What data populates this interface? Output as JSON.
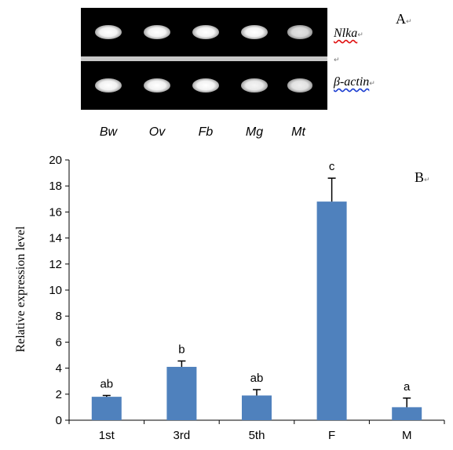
{
  "panel_a": {
    "label": "A",
    "lanes": [
      "Bw",
      "Ov",
      "Fb",
      "Mg",
      "Mt"
    ],
    "genes": [
      {
        "name": "Nlka",
        "relative_band_intensity": [
          1.0,
          1.0,
          1.0,
          1.0,
          0.75
        ]
      },
      {
        "name": "β-actin",
        "relative_band_intensity": [
          1.0,
          1.0,
          1.0,
          0.9,
          0.85
        ]
      }
    ]
  },
  "panel_b": {
    "label": "B"
  },
  "colors": {
    "bar": "#4f81bd",
    "gel_background": "#000000"
  },
  "chart_data": {
    "type": "bar",
    "categories": [
      "1st",
      "3rd",
      "5th",
      "F",
      "M"
    ],
    "values": [
      1.8,
      4.1,
      1.9,
      16.8,
      1.0
    ],
    "errors": [
      0.1,
      0.45,
      0.45,
      1.8,
      0.7
    ],
    "significance_letters": [
      "ab",
      "b",
      "ab",
      "c",
      "a"
    ],
    "ylabel": "Relative expression level",
    "xlabel": "",
    "ylim": [
      0,
      20
    ],
    "yticks": [
      0,
      2,
      4,
      6,
      8,
      10,
      12,
      14,
      16,
      18,
      20
    ],
    "grid": false,
    "legend": "none"
  }
}
